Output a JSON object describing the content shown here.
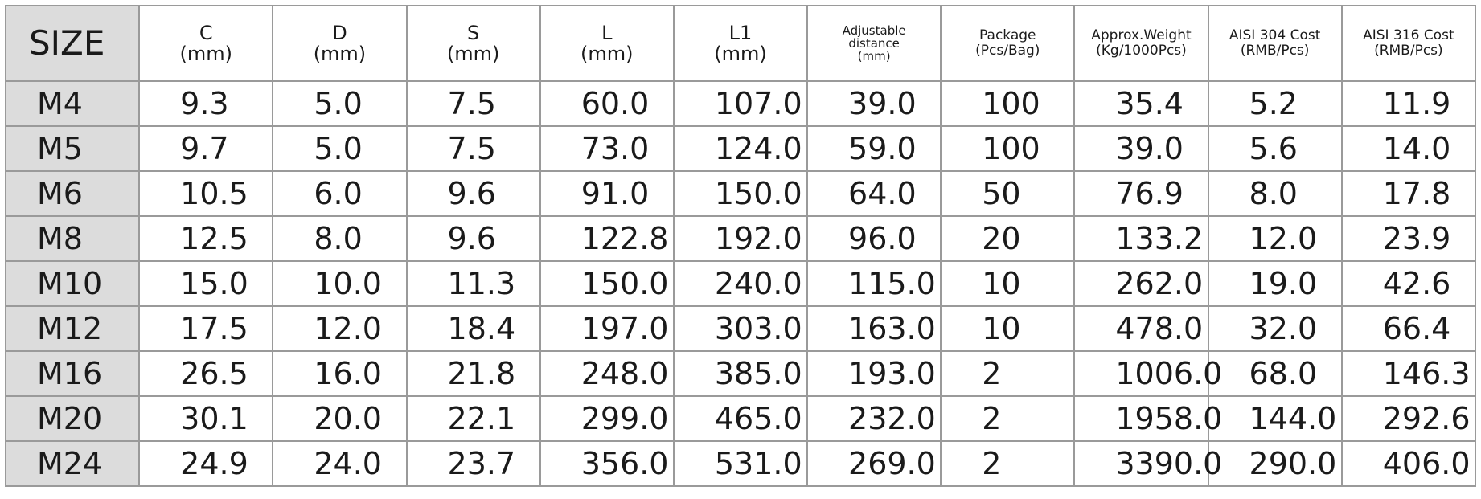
{
  "table": {
    "header": [
      [
        "SIZE"
      ],
      [
        "C",
        "(mm)"
      ],
      [
        "D",
        "(mm)"
      ],
      [
        "S",
        "(mm)"
      ],
      [
        "L",
        "(mm)"
      ],
      [
        "L1",
        "(mm)"
      ],
      [
        "Adjustable",
        "distance",
        "(mm)"
      ],
      [
        "Package",
        "(Pcs/Bag)"
      ],
      [
        "Approx.Weight",
        "(Kg/1000Pcs)"
      ],
      [
        "AISI 304 Cost",
        "(RMB/Pcs)"
      ],
      [
        "AISI 316 Cost",
        "(RMB/Pcs)"
      ]
    ],
    "rows": [
      [
        "M4",
        "9.3",
        "5.0",
        "7.5",
        "60.0",
        "107.0",
        "39.0",
        "100",
        "35.4",
        "5.2",
        "11.9"
      ],
      [
        "M5",
        "9.7",
        "5.0",
        "7.5",
        "73.0",
        "124.0",
        "59.0",
        "100",
        "39.0",
        "5.6",
        "14.0"
      ],
      [
        "M6",
        "10.5",
        "6.0",
        "9.6",
        "91.0",
        "150.0",
        "64.0",
        "50",
        "76.9",
        "8.0",
        "17.8"
      ],
      [
        "M8",
        "12.5",
        "8.0",
        "9.6",
        "122.8",
        "192.0",
        "96.0",
        "20",
        "133.2",
        "12.0",
        "23.9"
      ],
      [
        "M10",
        "15.0",
        "10.0",
        "11.3",
        "150.0",
        "240.0",
        "115.0",
        "10",
        "262.0",
        "19.0",
        "42.6"
      ],
      [
        "M12",
        "17.5",
        "12.0",
        "18.4",
        "197.0",
        "303.0",
        "163.0",
        "10",
        "478.0",
        "32.0",
        "66.4"
      ],
      [
        "M16",
        "26.5",
        "16.0",
        "21.8",
        "248.0",
        "385.0",
        "193.0",
        "2",
        "1006.0",
        "68.0",
        "146.3"
      ],
      [
        "M20",
        "30.1",
        "20.0",
        "22.1",
        "299.0",
        "465.0",
        "232.0",
        "2",
        "1958.0",
        "144.0",
        "292.6"
      ],
      [
        "M24",
        "24.9",
        "24.0",
        "23.7",
        "356.0",
        "531.0",
        "269.0",
        "2",
        "3390.0",
        "290.0",
        "406.0"
      ]
    ]
  }
}
